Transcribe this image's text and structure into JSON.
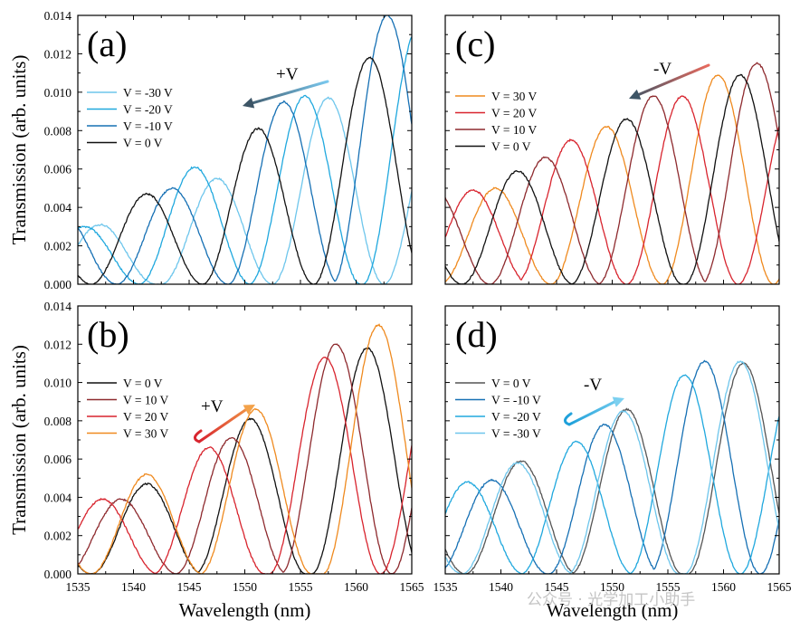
{
  "watermark": "公众号 · 光学加工小助手",
  "chart_data": [
    {
      "panel": "(a)",
      "type": "line",
      "ylabel": "Transmission (arb. units)",
      "xlabel": "",
      "xlim": [
        1535,
        1565
      ],
      "ylim": [
        0,
        0.014
      ],
      "xticks": [
        "1535",
        "1540",
        "1545",
        "1550",
        "1555",
        "1560",
        "1565"
      ],
      "yticks": [
        "0.000",
        "0.002",
        "0.004",
        "0.006",
        "0.008",
        "0.010",
        "0.012",
        "0.014"
      ],
      "show_x_tick_labels": false,
      "legend": "upper-left",
      "annotation": {
        "text": "+V",
        "arrow": "leftward",
        "color_from": "#7ac8ee",
        "color_to": "#3d5566"
      },
      "series": [
        {
          "name": "V = -30 V",
          "color": "#6ec6ec",
          "peaks": [
            [
              1537.0,
              0.0031
            ],
            [
              1547.5,
              0.0055
            ],
            [
              1557.5,
              0.0097
            ]
          ]
        },
        {
          "name": "V = -20 V",
          "color": "#20a8de",
          "peaks": [
            [
              1535.6,
              0.003
            ],
            [
              1545.5,
              0.0061
            ],
            [
              1555.4,
              0.0098
            ],
            [
              1565.6,
              0.0134
            ]
          ]
        },
        {
          "name": "V = -10 V",
          "color": "#1670b4",
          "peaks": [
            [
              1543.5,
              0.005
            ],
            [
              1553.5,
              0.0095
            ],
            [
              1562.8,
              0.014
            ]
          ]
        },
        {
          "name": "V = 0 V",
          "color": "#111111",
          "peaks": [
            [
              1541.2,
              0.0047
            ],
            [
              1551.2,
              0.0081
            ],
            [
              1561.2,
              0.0118
            ]
          ]
        }
      ]
    },
    {
      "panel": "(b)",
      "type": "line",
      "ylabel": "Transmission (arb. units)",
      "xlabel": "Wavelength (nm)",
      "xlim": [
        1535,
        1565
      ],
      "ylim": [
        0,
        0.014
      ],
      "xticks": [
        "1535",
        "1540",
        "1545",
        "1550",
        "1555",
        "1560",
        "1565"
      ],
      "yticks": [
        "0.000",
        "0.002",
        "0.004",
        "0.006",
        "0.008",
        "0.010",
        "0.012",
        "0.014"
      ],
      "show_x_tick_labels": true,
      "legend": "upper-left",
      "annotation": {
        "text": "+V",
        "arrow": "rightward",
        "color_from": "#d8242e",
        "color_to": "#f3a24a"
      },
      "series": [
        {
          "name": "V = 0 V",
          "color": "#111111",
          "peaks": [
            [
              1541.2,
              0.0047
            ],
            [
              1550.5,
              0.0081
            ],
            [
              1561.0,
              0.0118
            ]
          ]
        },
        {
          "name": "V = 10 V",
          "color": "#8e2a2e",
          "peaks": [
            [
              1538.9,
              0.0039
            ],
            [
              1548.8,
              0.0071
            ],
            [
              1558.2,
              0.012
            ]
          ]
        },
        {
          "name": "V = 20 V",
          "color": "#d8242e",
          "peaks": [
            [
              1537.2,
              0.0039
            ],
            [
              1546.8,
              0.0066
            ],
            [
              1557.2,
              0.0113
            ]
          ]
        },
        {
          "name": "V = 30 V",
          "color": "#ef8a1f",
          "peaks": [
            [
              1541.2,
              0.0052
            ],
            [
              1551.0,
              0.0086
            ],
            [
              1562.0,
              0.013
            ]
          ]
        }
      ]
    },
    {
      "panel": "(c)",
      "type": "line",
      "ylabel": "",
      "xlabel": "",
      "xlim": [
        1535,
        1565
      ],
      "ylim": [
        0,
        0.014
      ],
      "xticks": [
        "1535",
        "1540",
        "1545",
        "1550",
        "1555",
        "1560",
        "1565"
      ],
      "yticks": [
        "0.000",
        "0.002",
        "0.004",
        "0.006",
        "0.008",
        "0.010",
        "0.012",
        "0.014"
      ],
      "show_x_tick_labels": false,
      "legend": "upper-left",
      "annotation": {
        "text": "-V",
        "arrow": "leftward",
        "color_from": "#e86a5e",
        "color_to": "#3d5566"
      },
      "series": [
        {
          "name": "V = 30 V",
          "color": "#ef8a1f",
          "peaks": [
            [
              1539.5,
              0.005
            ],
            [
              1549.5,
              0.0082
            ],
            [
              1559.5,
              0.0109
            ]
          ]
        },
        {
          "name": "V = 20 V",
          "color": "#d8242e",
          "peaks": [
            [
              1537.5,
              0.0049
            ],
            [
              1546.3,
              0.0075
            ],
            [
              1556.3,
              0.0098
            ]
          ]
        },
        {
          "name": "V = 10 V",
          "color": "#8e2a2e",
          "peaks": [
            [
              1544.0,
              0.0066
            ],
            [
              1553.7,
              0.0098
            ],
            [
              1563.0,
              0.0115
            ]
          ]
        },
        {
          "name": "V = 0 V",
          "color": "#111111",
          "peaks": [
            [
              1541.5,
              0.0059
            ],
            [
              1551.3,
              0.0086
            ],
            [
              1561.5,
              0.0109
            ]
          ]
        }
      ]
    },
    {
      "panel": "(d)",
      "type": "line",
      "ylabel": "",
      "xlabel": "Wavelength (nm)",
      "xlim": [
        1535,
        1565
      ],
      "ylim": [
        0,
        0.014
      ],
      "xticks": [
        "1535",
        "1540",
        "1545",
        "1550",
        "1555",
        "1560",
        "1565"
      ],
      "yticks": [
        "0.000",
        "0.002",
        "0.004",
        "0.006",
        "0.008",
        "0.010",
        "0.012",
        "0.014"
      ],
      "show_x_tick_labels": true,
      "legend": "upper-left",
      "annotation": {
        "text": "-V",
        "arrow": "rightward",
        "color_from": "#1ea0da",
        "color_to": "#7cd0f0"
      },
      "series": [
        {
          "name": "V = 0 V",
          "color": "#555555",
          "peaks": [
            [
              1541.8,
              0.0059
            ],
            [
              1551.3,
              0.0086
            ],
            [
              1561.8,
              0.011
            ]
          ]
        },
        {
          "name": "V = -10 V",
          "color": "#1670b4",
          "peaks": [
            [
              1539.2,
              0.0049
            ],
            [
              1549.3,
              0.0078
            ],
            [
              1558.3,
              0.0111
            ]
          ]
        },
        {
          "name": "V = -20 V",
          "color": "#20a8de",
          "peaks": [
            [
              1537.0,
              0.0048
            ],
            [
              1546.8,
              0.0069
            ],
            [
              1556.5,
              0.0104
            ]
          ]
        },
        {
          "name": "V = -30 V",
          "color": "#6ec6ec",
          "peaks": [
            [
              1541.5,
              0.0058
            ],
            [
              1551.0,
              0.0085
            ],
            [
              1561.5,
              0.0111
            ]
          ]
        }
      ]
    }
  ]
}
